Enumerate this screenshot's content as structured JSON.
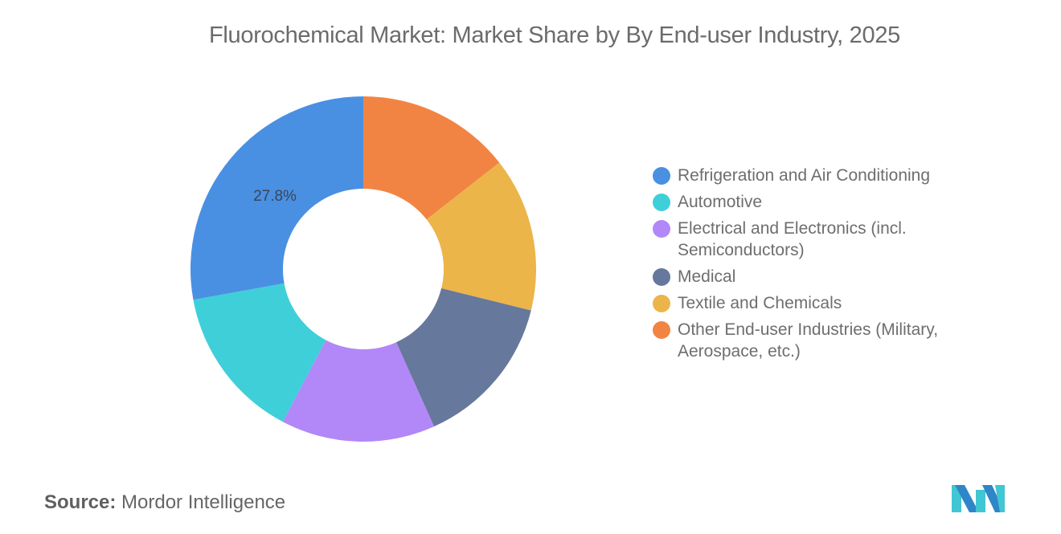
{
  "title": "Fluorochemical Market: Market Share by By End-user Industry, 2025",
  "chart_data": {
    "type": "pie",
    "subtype": "donut",
    "title": "Fluorochemical Market: Market Share by By End-user Industry, 2025",
    "start_angle_deg": 0,
    "direction": "clockwise-from-top, drawn in reverse legend order",
    "categories": [
      "Refrigeration and Air Conditioning",
      "Automotive",
      "Electrical and Electronics (incl. Semiconductors)",
      "Medical",
      "Textile and Chemicals",
      "Other End-user Industries (Military, Aerospace, etc.)"
    ],
    "values": [
      27.8,
      14.4,
      14.4,
      14.4,
      14.4,
      14.4
    ],
    "colors": [
      "#4a90e2",
      "#3fcfd9",
      "#b287f8",
      "#66789b",
      "#ebb54a",
      "#f28443"
    ],
    "labels_shown": [
      {
        "category": "Refrigeration and Air Conditioning",
        "text": "27.8%"
      }
    ],
    "legend_position": "right",
    "inner_radius_ratio": 0.465
  },
  "legend": {
    "items": [
      {
        "label": "Refrigeration and Air Conditioning",
        "color": "#4a90e2"
      },
      {
        "label": "Automotive",
        "color": "#3fcfd9"
      },
      {
        "label": "Electrical and Electronics (incl. Semiconductors)",
        "color": "#b287f8"
      },
      {
        "label": "Medical",
        "color": "#66789b"
      },
      {
        "label": "Textile and Chemicals",
        "color": "#ebb54a"
      },
      {
        "label": "Other End-user Industries (Military, Aerospace, etc.)",
        "color": "#f28443"
      }
    ]
  },
  "source": {
    "key": "Source:",
    "value": "Mordor Intelligence"
  },
  "logo": {
    "icon": "mordor-intelligence-logo-icon",
    "colors": [
      "#2e86c8",
      "#41c6d3"
    ]
  }
}
